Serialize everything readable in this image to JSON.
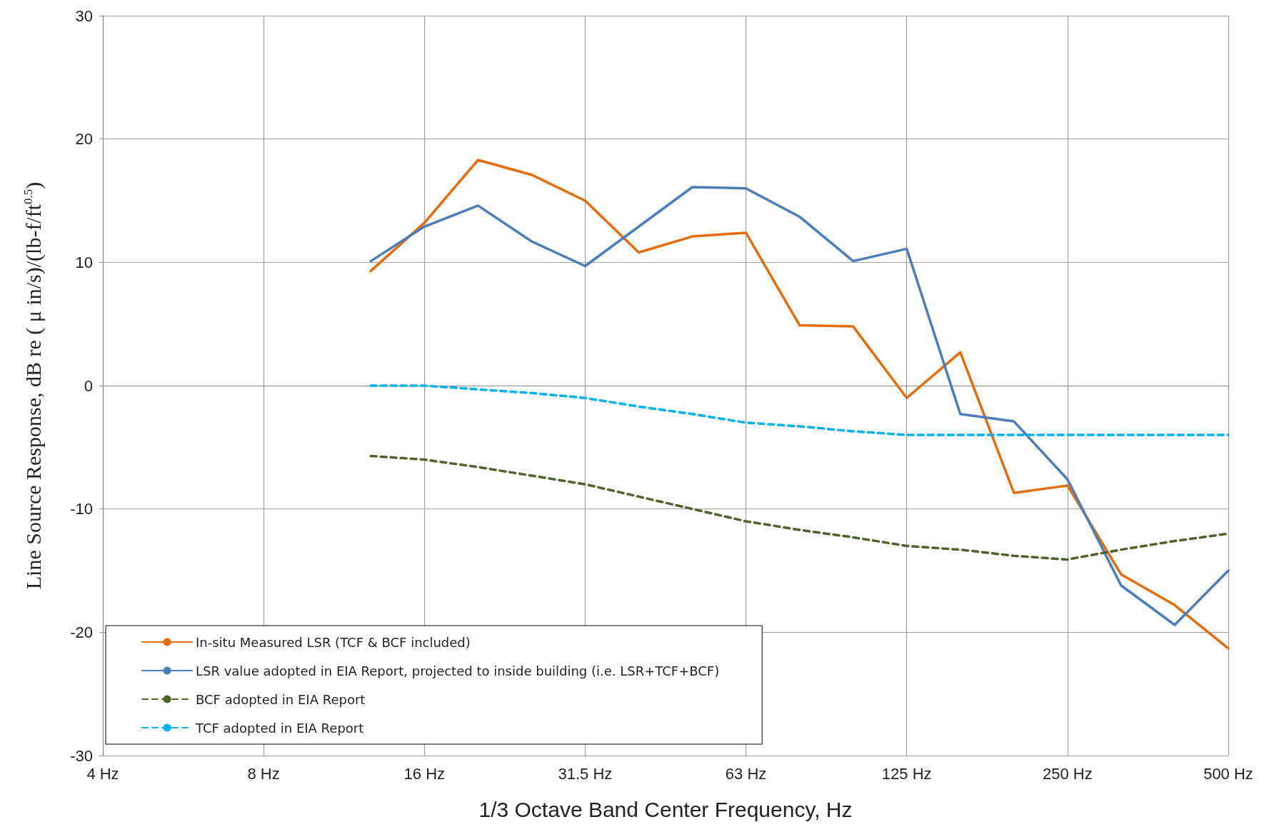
{
  "chart_data": {
    "type": "line",
    "xlabel": "1/3 Octave Band Center Frequency, Hz",
    "ylabel": "Line Source Response, dB re ( μ in/s)/(lb-f/ft$^{0.5}$)",
    "categories": [
      "4 Hz",
      null,
      null,
      "8 Hz",
      null,
      null,
      "16 Hz",
      null,
      null,
      "31.5 Hz",
      null,
      null,
      "63 Hz",
      null,
      null,
      "125 Hz",
      null,
      null,
      "250 Hz",
      null,
      null,
      "500 Hz"
    ],
    "series": [
      {
        "name": "In-situ Measured LSR (TCF & BCF included)",
        "color": "#e46c0a",
        "line_style": "solid",
        "values": [
          null,
          null,
          null,
          null,
          null,
          9.3,
          13.2,
          18.3,
          17.1,
          15.0,
          10.8,
          12.1,
          12.4,
          4.9,
          4.8,
          -1.0,
          2.7,
          -8.7,
          -8.1,
          -15.3,
          -17.8,
          -21.3
        ]
      },
      {
        "name": "LSR value adopted in EIA Report, projected to inside building (i.e. LSR+TCF+BCF)",
        "color": "#4a7ebb",
        "line_style": "solid",
        "values": [
          null,
          null,
          null,
          null,
          null,
          10.1,
          12.9,
          14.6,
          11.7,
          9.7,
          12.9,
          16.1,
          16.0,
          13.7,
          10.1,
          11.1,
          -2.3,
          -2.9,
          -7.6,
          -16.2,
          -19.4,
          -15.0
        ]
      },
      {
        "name": "BCF adopted in EIA Report",
        "color": "#4f6228",
        "line_style": "dashed",
        "values": [
          null,
          null,
          null,
          null,
          null,
          -5.7,
          -6.0,
          -6.6,
          -7.3,
          -8.0,
          -9.0,
          -10.0,
          -11.0,
          -11.7,
          -12.3,
          -13.0,
          -13.3,
          -13.8,
          -14.1,
          -13.3,
          -12.6,
          -12.0
        ]
      },
      {
        "name": "TCF adopted in EIA Report",
        "color": "#00b0f0",
        "line_style": "dashed",
        "values": [
          null,
          null,
          null,
          null,
          null,
          0.0,
          0.0,
          -0.3,
          -0.6,
          -1.0,
          -1.7,
          -2.3,
          -3.0,
          -3.3,
          -3.7,
          -4.0,
          -4.0,
          -4.0,
          -4.0,
          -4.0,
          -4.0,
          -4.0
        ]
      }
    ],
    "ylim": [
      -30,
      30
    ],
    "yticks": [
      -30,
      -20,
      -10,
      0,
      10,
      20,
      30
    ],
    "grid": true,
    "legend": "bottom left",
    "marker": "none"
  }
}
